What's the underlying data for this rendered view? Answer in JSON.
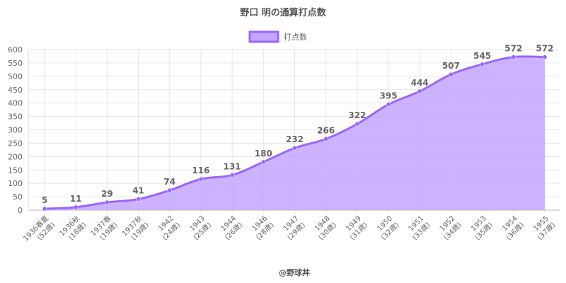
{
  "chart_data": {
    "type": "area",
    "title": "野口 明の通算打点数",
    "credit": "@野球丼",
    "series": [
      {
        "name": "打点数",
        "values": [
          5,
          11,
          29,
          41,
          74,
          116,
          131,
          180,
          232,
          266,
          322,
          395,
          444,
          507,
          545,
          572,
          572
        ]
      }
    ],
    "categories": [
      [
        "1936春夏",
        "(52歳)"
      ],
      [
        "1936秋",
        "(18歳)"
      ],
      [
        "1937春",
        "(19歳)"
      ],
      [
        "1937秋",
        "(19歳)"
      ],
      [
        "1942",
        "(24歳)"
      ],
      [
        "1943",
        "(25歳)"
      ],
      [
        "1944",
        "(26歳)"
      ],
      [
        "1946",
        "(28歳)"
      ],
      [
        "1947",
        "(29歳)"
      ],
      [
        "1948",
        "(30歳)"
      ],
      [
        "1949",
        "(31歳)"
      ],
      [
        "1950",
        "(32歳)"
      ],
      [
        "1951",
        "(33歳)"
      ],
      [
        "1952",
        "(34歳)"
      ],
      [
        "1953",
        "(35歳)"
      ],
      [
        "1954",
        "(36歳)"
      ],
      [
        "1955",
        "(37歳)"
      ]
    ],
    "ylim": [
      0,
      600
    ],
    "yticks": [
      0,
      50,
      100,
      150,
      200,
      250,
      300,
      350,
      400,
      450,
      500,
      550,
      600
    ],
    "grid": true,
    "legend": "top",
    "colors": {
      "line": "#9966ff",
      "fill": "#c4a6ff",
      "grid": "#e6e6e6"
    }
  }
}
